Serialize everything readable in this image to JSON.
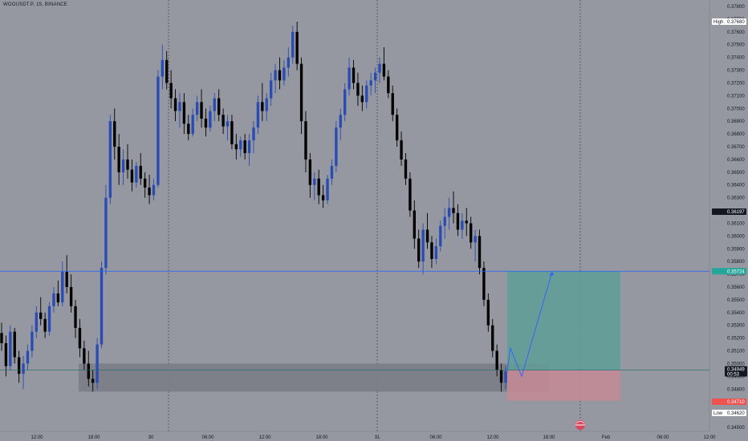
{
  "symbol": {
    "title": "WOOUSDT.P, 15, BINANCE"
  },
  "colors": {
    "background": "#9598a1",
    "candle_up": "#2a4bb3",
    "candle_down": "#000000",
    "target_zone": "#5f9e96",
    "stop_zone": "#c58a95",
    "demand_zone": "#7a7d85",
    "entry_line": "#1e6b6b",
    "target_line": "#2962ff",
    "projection": "#2962ff",
    "session_line": "#4a4d55"
  },
  "price_axis": {
    "ticks": [
      "0.37800",
      "0.37700",
      "0.37600",
      "0.37500",
      "0.37400",
      "0.37300",
      "0.37200",
      "0.37100",
      "0.37000",
      "0.36900",
      "0.36800",
      "0.36700",
      "0.36600",
      "0.36500",
      "0.36400",
      "0.36300",
      "0.36200",
      "0.36100",
      "0.36000",
      "0.35900",
      "0.35800",
      "0.35700",
      "0.35600",
      "0.35500",
      "0.35400",
      "0.35300",
      "0.35200",
      "0.35100",
      "0.35000",
      "0.34900",
      "0.34800",
      "0.34700",
      "0.34600",
      "0.34500"
    ],
    "high_label": "High",
    "high_value": "0.37680",
    "low_label": "Low",
    "low_value": "0.34620",
    "current_price": "0.34949",
    "countdown": "00:53",
    "target_price": "0.35724",
    "stop_price": "0.34710",
    "marker_price": "0.36197"
  },
  "time_axis": {
    "ticks": [
      "12:00",
      "18:00",
      "30",
      "06:00",
      "12:00",
      "18:00",
      "31",
      "06:00",
      "12:00",
      "18:00",
      "Feb",
      "06:00",
      "12:00"
    ]
  },
  "chart_data": {
    "type": "candlestick",
    "timeframe": "15",
    "ylim": [
      0.345,
      0.3785
    ],
    "candles": [
      [
        0.3524,
        0.3532,
        0.351,
        0.3516
      ],
      [
        0.3516,
        0.3522,
        0.349,
        0.3498
      ],
      [
        0.3498,
        0.353,
        0.3495,
        0.3525
      ],
      [
        0.3525,
        0.3528,
        0.35,
        0.3505
      ],
      [
        0.3505,
        0.351,
        0.3485,
        0.3492
      ],
      [
        0.3492,
        0.3506,
        0.348,
        0.35
      ],
      [
        0.35,
        0.3515,
        0.3495,
        0.351
      ],
      [
        0.351,
        0.353,
        0.3505,
        0.3525
      ],
      [
        0.3525,
        0.3545,
        0.352,
        0.354
      ],
      [
        0.354,
        0.3552,
        0.353,
        0.3535
      ],
      [
        0.3535,
        0.354,
        0.352,
        0.3525
      ],
      [
        0.3525,
        0.3548,
        0.3522,
        0.3545
      ],
      [
        0.3545,
        0.356,
        0.354,
        0.3555
      ],
      [
        0.3555,
        0.3565,
        0.3545,
        0.3548
      ],
      [
        0.3548,
        0.358,
        0.3545,
        0.3572
      ],
      [
        0.3572,
        0.3585,
        0.3555,
        0.356
      ],
      [
        0.356,
        0.357,
        0.354,
        0.3545
      ],
      [
        0.3545,
        0.355,
        0.352,
        0.3528
      ],
      [
        0.3528,
        0.3535,
        0.3505,
        0.3512
      ],
      [
        0.3512,
        0.3518,
        0.3495,
        0.35
      ],
      [
        0.35,
        0.351,
        0.3482,
        0.3488
      ],
      [
        0.3488,
        0.3495,
        0.3478,
        0.3485
      ],
      [
        0.3485,
        0.352,
        0.348,
        0.3515
      ],
      [
        0.3515,
        0.358,
        0.3512,
        0.3575
      ],
      [
        0.3575,
        0.364,
        0.357,
        0.363
      ],
      [
        0.363,
        0.3695,
        0.3625,
        0.369
      ],
      [
        0.369,
        0.37,
        0.366,
        0.367
      ],
      [
        0.367,
        0.368,
        0.364,
        0.365
      ],
      [
        0.365,
        0.3668,
        0.364,
        0.366
      ],
      [
        0.366,
        0.3672,
        0.3645,
        0.3652
      ],
      [
        0.3652,
        0.366,
        0.3635,
        0.3642
      ],
      [
        0.3642,
        0.3658,
        0.3638,
        0.3655
      ],
      [
        0.3655,
        0.3665,
        0.364,
        0.3645
      ],
      [
        0.3645,
        0.365,
        0.363,
        0.3638
      ],
      [
        0.3638,
        0.3648,
        0.3625,
        0.3632
      ],
      [
        0.3632,
        0.3645,
        0.3628,
        0.364
      ],
      [
        0.364,
        0.373,
        0.3638,
        0.3725
      ],
      [
        0.3725,
        0.375,
        0.3715,
        0.3738
      ],
      [
        0.3738,
        0.3745,
        0.3715,
        0.372
      ],
      [
        0.372,
        0.373,
        0.37,
        0.3708
      ],
      [
        0.3708,
        0.3715,
        0.369,
        0.3698
      ],
      [
        0.3698,
        0.3712,
        0.3685,
        0.3705
      ],
      [
        0.3705,
        0.3712,
        0.368,
        0.3688
      ],
      [
        0.3688,
        0.3695,
        0.3675,
        0.368
      ],
      [
        0.368,
        0.37,
        0.3678,
        0.3695
      ],
      [
        0.3695,
        0.371,
        0.369,
        0.3705
      ],
      [
        0.3705,
        0.3715,
        0.3685,
        0.3692
      ],
      [
        0.3692,
        0.37,
        0.3678,
        0.3685
      ],
      [
        0.3685,
        0.3702,
        0.3682,
        0.3698
      ],
      [
        0.3698,
        0.3712,
        0.369,
        0.3708
      ],
      [
        0.3708,
        0.3715,
        0.369,
        0.3695
      ],
      [
        0.3695,
        0.37,
        0.368,
        0.3686
      ],
      [
        0.3686,
        0.3695,
        0.3675,
        0.369
      ],
      [
        0.369,
        0.3695,
        0.3668,
        0.3672
      ],
      [
        0.3672,
        0.368,
        0.366,
        0.3668
      ],
      [
        0.3668,
        0.3678,
        0.3662,
        0.3675
      ],
      [
        0.3675,
        0.368,
        0.366,
        0.3665
      ],
      [
        0.3665,
        0.368,
        0.3655,
        0.3675
      ],
      [
        0.3675,
        0.369,
        0.3665,
        0.3685
      ],
      [
        0.3685,
        0.371,
        0.368,
        0.3705
      ],
      [
        0.3705,
        0.372,
        0.369,
        0.3698
      ],
      [
        0.3698,
        0.3712,
        0.369,
        0.3708
      ],
      [
        0.3708,
        0.3728,
        0.3702,
        0.3722
      ],
      [
        0.3722,
        0.3735,
        0.3712,
        0.373
      ],
      [
        0.373,
        0.374,
        0.3715,
        0.3722
      ],
      [
        0.3722,
        0.3738,
        0.3718,
        0.3732
      ],
      [
        0.3732,
        0.3748,
        0.3725,
        0.374
      ],
      [
        0.374,
        0.3765,
        0.3735,
        0.376
      ],
      [
        0.376,
        0.3768,
        0.373,
        0.3735
      ],
      [
        0.3735,
        0.374,
        0.368,
        0.369
      ],
      [
        0.369,
        0.3698,
        0.365,
        0.366
      ],
      [
        0.366,
        0.3665,
        0.363,
        0.364
      ],
      [
        0.364,
        0.365,
        0.3628,
        0.3645
      ],
      [
        0.3645,
        0.3652,
        0.3625,
        0.3632
      ],
      [
        0.3632,
        0.364,
        0.3622,
        0.3628
      ],
      [
        0.3628,
        0.3648,
        0.3625,
        0.3645
      ],
      [
        0.3645,
        0.366,
        0.364,
        0.3655
      ],
      [
        0.3655,
        0.369,
        0.365,
        0.3685
      ],
      [
        0.3685,
        0.37,
        0.3675,
        0.3695
      ],
      [
        0.3695,
        0.372,
        0.369,
        0.3715
      ],
      [
        0.3715,
        0.374,
        0.371,
        0.3732
      ],
      [
        0.3732,
        0.3738,
        0.3715,
        0.372
      ],
      [
        0.372,
        0.3728,
        0.3702,
        0.371
      ],
      [
        0.371,
        0.3718,
        0.3698,
        0.3705
      ],
      [
        0.3705,
        0.3722,
        0.37,
        0.3718
      ],
      [
        0.3718,
        0.3728,
        0.371,
        0.3722
      ],
      [
        0.3722,
        0.3732,
        0.3712,
        0.3728
      ],
      [
        0.3728,
        0.374,
        0.372,
        0.3735
      ],
      [
        0.3735,
        0.3748,
        0.3722,
        0.3725
      ],
      [
        0.3725,
        0.373,
        0.3708,
        0.3712
      ],
      [
        0.3712,
        0.3718,
        0.369,
        0.3695
      ],
      [
        0.3695,
        0.37,
        0.367,
        0.3675
      ],
      [
        0.3675,
        0.3682,
        0.3655,
        0.366
      ],
      [
        0.366,
        0.3665,
        0.364,
        0.3645
      ],
      [
        0.3645,
        0.365,
        0.3615,
        0.362
      ],
      [
        0.362,
        0.3628,
        0.359,
        0.3598
      ],
      [
        0.3598,
        0.3605,
        0.3575,
        0.358
      ],
      [
        0.358,
        0.361,
        0.357,
        0.3605
      ],
      [
        0.3605,
        0.3618,
        0.359,
        0.3595
      ],
      [
        0.3595,
        0.36,
        0.3575,
        0.3582
      ],
      [
        0.3582,
        0.3598,
        0.3578,
        0.3592
      ],
      [
        0.3592,
        0.3612,
        0.3588,
        0.3608
      ],
      [
        0.3608,
        0.3622,
        0.3598,
        0.3615
      ],
      [
        0.3615,
        0.363,
        0.3605,
        0.3622
      ],
      [
        0.3622,
        0.3635,
        0.361,
        0.3618
      ],
      [
        0.3618,
        0.3625,
        0.36,
        0.3605
      ],
      [
        0.3605,
        0.3618,
        0.3598,
        0.3612
      ],
      [
        0.3612,
        0.3622,
        0.36,
        0.361
      ],
      [
        0.361,
        0.3615,
        0.359,
        0.3595
      ],
      [
        0.3595,
        0.3605,
        0.358,
        0.36
      ],
      [
        0.36,
        0.3605,
        0.357,
        0.3575
      ],
      [
        0.3575,
        0.358,
        0.3545,
        0.355
      ],
      [
        0.355,
        0.3555,
        0.3525,
        0.353
      ],
      [
        0.353,
        0.3535,
        0.3505,
        0.351
      ],
      [
        0.351,
        0.3515,
        0.349,
        0.3495
      ],
      [
        0.3495,
        0.35,
        0.3478,
        0.3485
      ],
      [
        0.3485,
        0.3498,
        0.348,
        0.3494
      ]
    ],
    "zones": {
      "demand_zone": [
        0.3478,
        0.35
      ],
      "target_zone": [
        0.34949,
        0.35724
      ],
      "stop_zone": [
        0.3471,
        0.34949
      ]
    },
    "projection": [
      0.3494,
      0.3512,
      0.349,
      0.3572
    ]
  }
}
